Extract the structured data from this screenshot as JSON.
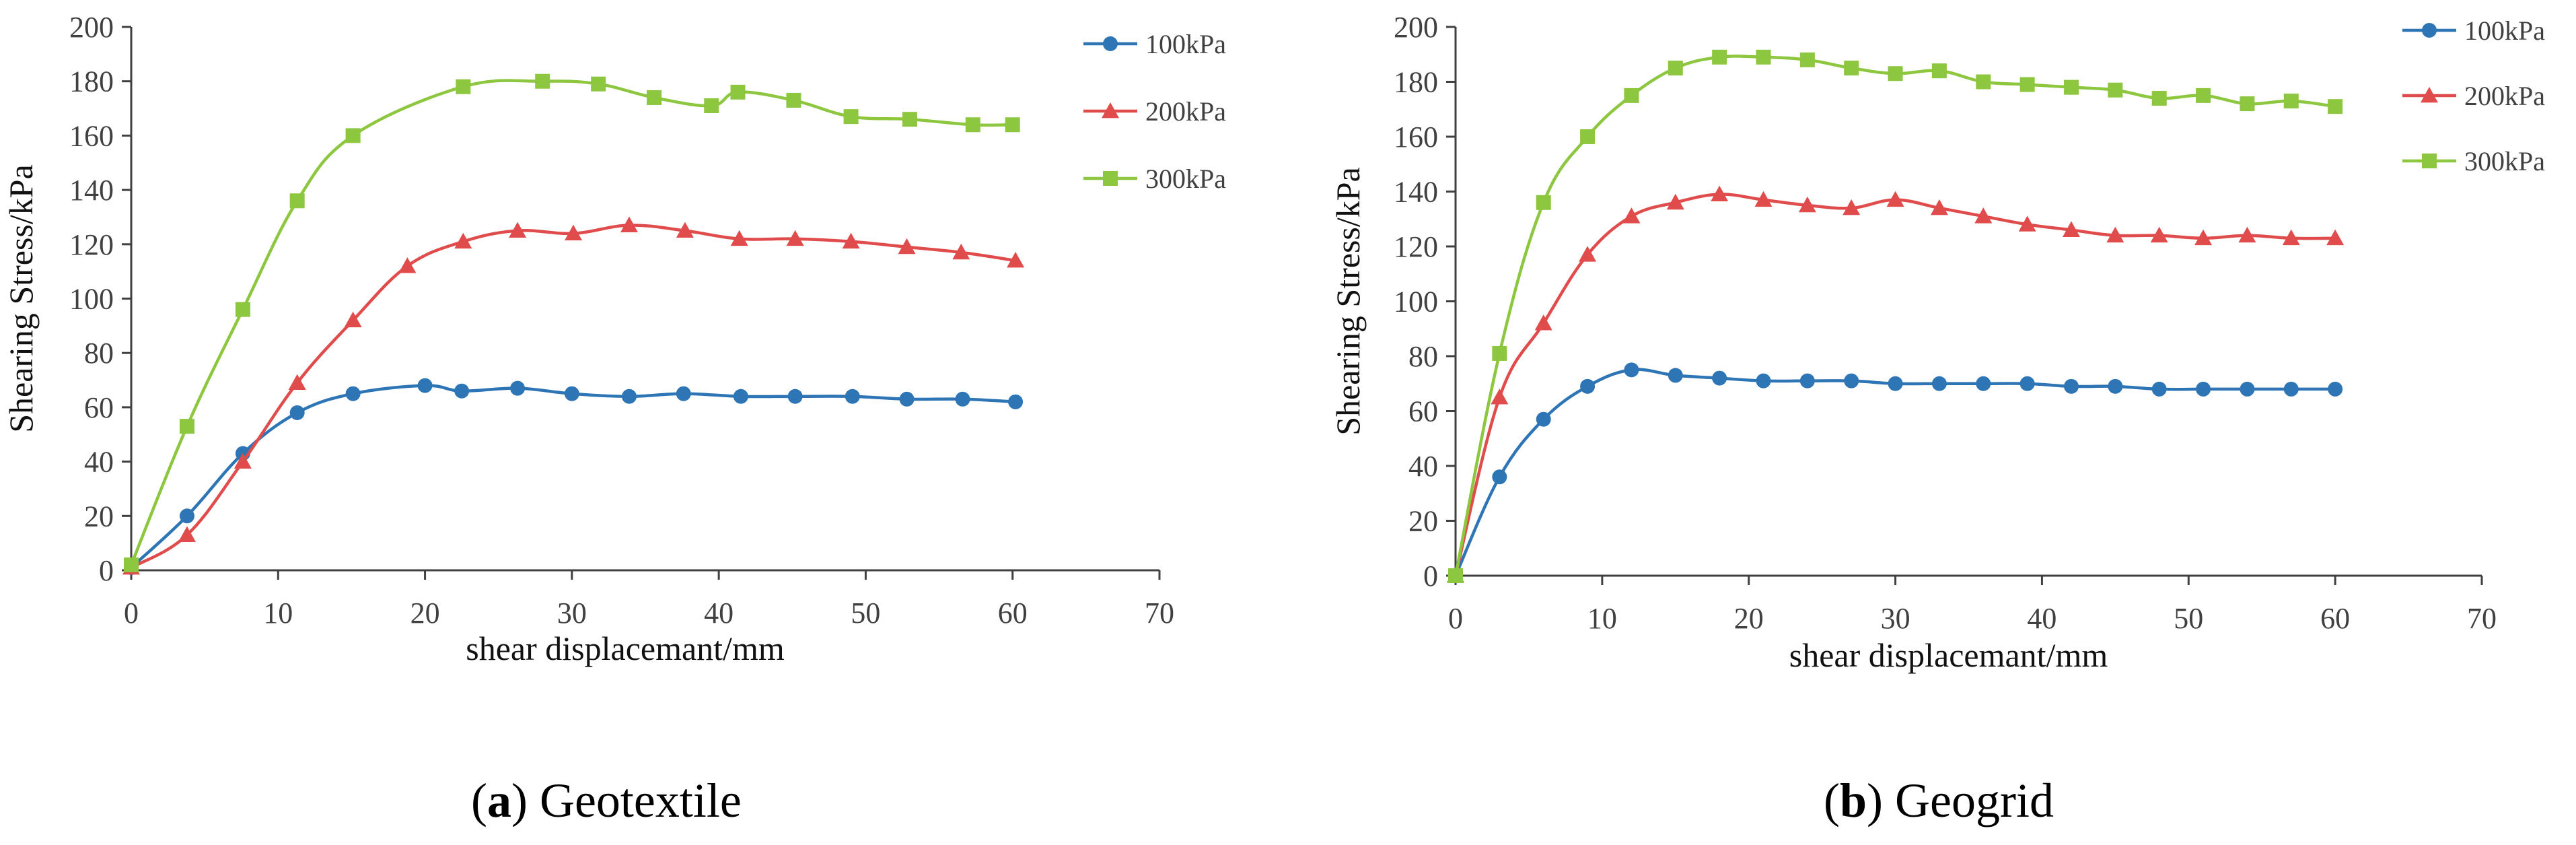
{
  "colors": {
    "s100": "#2E75B6",
    "s200": "#E04C4C",
    "s300": "#8DC63F",
    "axis": "#404040"
  },
  "panels": [
    {
      "caption": {
        "letter": "a",
        "open": "(",
        "close": ")",
        "name": "Geotextile"
      },
      "chart_data": {
        "type": "line",
        "xlabel": "shear displacemant/mm",
        "ylabel": "Shearing Stress/kPa",
        "xlim": [
          0,
          70
        ],
        "ylim": [
          0,
          200
        ],
        "xticks": [
          0,
          10,
          20,
          30,
          40,
          50,
          60,
          70
        ],
        "yticks": [
          0,
          20,
          40,
          60,
          80,
          100,
          120,
          140,
          160,
          180,
          200
        ],
        "grid": false,
        "legend": "right",
        "series": [
          {
            "name": "100kPa",
            "marker": "circle",
            "x": [
              0,
              3.8,
              7.6,
              11.3,
              15.1,
              20,
              22.5,
              26.3,
              30,
              33.9,
              37.6,
              41.5,
              45.2,
              49.1,
              52.8,
              56.6,
              60.2
            ],
            "y": [
              1,
              20,
              43,
              58,
              65,
              68,
              66,
              67,
              65,
              64,
              65,
              64,
              64,
              64,
              63,
              63,
              62
            ]
          },
          {
            "name": "200kPa",
            "marker": "triangle",
            "x": [
              0,
              3.8,
              7.6,
              11.3,
              15.1,
              18.8,
              22.6,
              26.3,
              30.1,
              33.9,
              37.7,
              41.4,
              45.2,
              49,
              52.8,
              56.5,
              60.2
            ],
            "y": [
              1,
              13,
              40,
              69,
              92,
              112,
              121,
              125,
              124,
              127,
              125,
              122,
              122,
              121,
              119,
              117,
              114
            ]
          },
          {
            "name": "300kPa",
            "marker": "square",
            "x": [
              0,
              3.8,
              7.6,
              11.3,
              15.1,
              22.6,
              28,
              31.8,
              35.6,
              39.5,
              41.3,
              45.1,
              49,
              53,
              57.3,
              60
            ],
            "y": [
              2,
              53,
              96,
              136,
              160,
              178,
              180,
              179,
              174,
              171,
              176,
              173,
              167,
              166,
              164,
              164
            ]
          }
        ]
      }
    },
    {
      "caption": {
        "letter": "b",
        "open": "(",
        "close": ")",
        "name": "Geogrid"
      },
      "chart_data": {
        "type": "line",
        "xlabel": "shear displacemant/mm",
        "ylabel": "Shearing Stress/kPa",
        "xlim": [
          0,
          70
        ],
        "ylim": [
          0,
          200
        ],
        "xticks": [
          0,
          10,
          20,
          30,
          40,
          50,
          60,
          70
        ],
        "yticks": [
          0,
          20,
          40,
          60,
          80,
          100,
          120,
          140,
          160,
          180,
          200
        ],
        "grid": false,
        "legend": "top-right",
        "series": [
          {
            "name": "100kPa",
            "marker": "circle",
            "x": [
              0,
              3,
              6,
              9,
              12,
              15,
              18,
              21,
              24,
              27,
              30,
              33,
              36,
              39,
              42,
              45,
              48,
              51,
              54,
              57,
              60
            ],
            "y": [
              0,
              36,
              57,
              69,
              75,
              73,
              72,
              71,
              71,
              71,
              70,
              70,
              70,
              70,
              69,
              69,
              68,
              68,
              68,
              68,
              68
            ]
          },
          {
            "name": "200kPa",
            "marker": "triangle",
            "x": [
              0,
              3,
              6,
              9,
              12,
              15,
              18,
              21,
              24,
              27,
              30,
              33,
              36,
              39,
              42,
              45,
              48,
              51,
              54,
              57,
              60
            ],
            "y": [
              0,
              65,
              92,
              117,
              131,
              136,
              139,
              137,
              135,
              134,
              137,
              134,
              131,
              128,
              126,
              124,
              124,
              123,
              124,
              123,
              123
            ]
          },
          {
            "name": "300kPa",
            "marker": "square",
            "x": [
              0,
              3,
              6,
              9,
              12,
              15,
              18,
              21,
              24,
              27,
              30,
              33,
              36,
              39,
              42,
              45,
              48,
              51,
              54,
              57,
              60
            ],
            "y": [
              0,
              81,
              136,
              160,
              175,
              185,
              189,
              189,
              188,
              185,
              183,
              184,
              180,
              179,
              178,
              177,
              174,
              175,
              172,
              173,
              171
            ]
          }
        ]
      }
    }
  ]
}
